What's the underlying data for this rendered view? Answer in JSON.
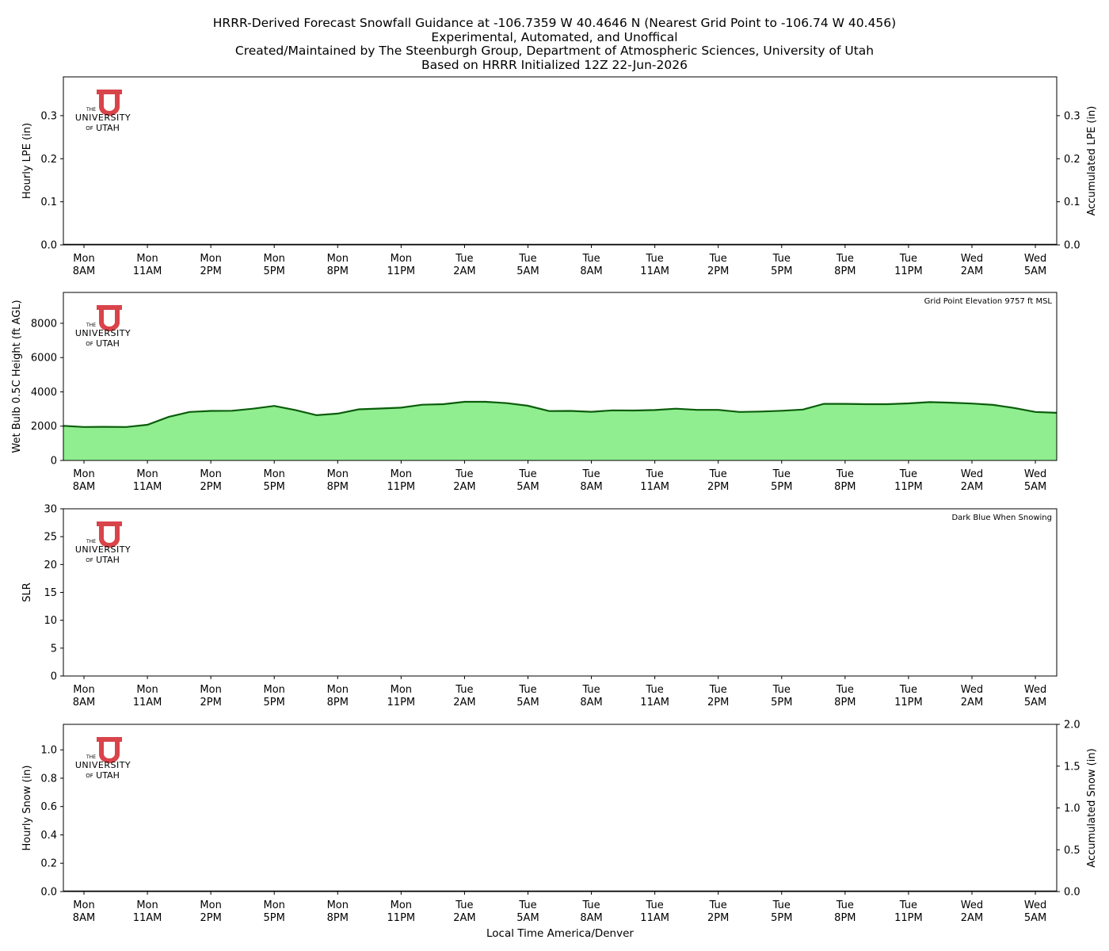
{
  "figure": {
    "title_lines": [
      "HRRR-Derived Forecast Snowfall Guidance at -106.7359 W 40.4646 N (Nearest Grid Point to -106.74 W 40.456)",
      "Experimental, Automated, and Unoffical",
      "Created/Maintained by The Steenburgh Group, Department of Atmospheric Sciences, University of Utah",
      "Based on HRRR Initialized 12Z 22-Jun-2026"
    ],
    "xlabel": "Local Time America/Denver"
  },
  "logo": {
    "the": "THE",
    "university": "UNIVERSITY",
    "of": "OF",
    "utah": "UTAH",
    "color": "#d9444a"
  },
  "colors": {
    "area_fill": "#90ee90",
    "area_line": "#0b5d0b",
    "zero_line": "#000000"
  },
  "chart_data": [
    {
      "type": "bar",
      "ylabel": "Hourly LPE (in)",
      "ylabel_right": "Accumulated LPE (in)",
      "ylim": [
        0,
        0.39
      ],
      "ylim_right": [
        0,
        0.39
      ],
      "yticks": [
        0,
        0.1,
        0.2,
        0.3
      ],
      "ytick_labels": [
        "0.0",
        "0.1",
        "0.2",
        "0.3"
      ],
      "yticks_right": [
        0,
        0.1,
        0.2,
        0.3
      ],
      "ytick_labels_right": [
        "0.0",
        "0.1",
        "0.2",
        "0.3"
      ],
      "x_ticks": [
        "Mon\n8AM",
        "Mon\n11AM",
        "Mon\n2PM",
        "Mon\n5PM",
        "Mon\n8PM",
        "Mon\n11PM",
        "Tue\n2AM",
        "Tue\n5AM",
        "Tue\n8AM",
        "Tue\n11AM",
        "Tue\n2PM",
        "Tue\n5PM",
        "Tue\n8PM",
        "Tue\n11PM",
        "Wed\n2AM",
        "Wed\n5AM"
      ],
      "series": [
        {
          "values": [
            0,
            0,
            0,
            0,
            0,
            0,
            0,
            0,
            0,
            0,
            0,
            0,
            0,
            0,
            0,
            0,
            0,
            0,
            0,
            0,
            0,
            0,
            0,
            0,
            0,
            0,
            0,
            0,
            0,
            0,
            0,
            0,
            0,
            0,
            0,
            0,
            0,
            0,
            0,
            0,
            0,
            0,
            0,
            0,
            0,
            0,
            0,
            0,
            0
          ]
        }
      ],
      "annotation": ""
    },
    {
      "type": "area",
      "ylabel": "Wet Bulb 0.5C Height (ft AGL)",
      "ylim": [
        0,
        9800
      ],
      "yticks": [
        0,
        2000,
        4000,
        6000,
        8000
      ],
      "ytick_labels": [
        "0",
        "2000",
        "4000",
        "6000",
        "8000"
      ],
      "x_ticks": [
        "Mon\n8AM",
        "Mon\n11AM",
        "Mon\n2PM",
        "Mon\n5PM",
        "Mon\n8PM",
        "Mon\n11PM",
        "Tue\n2AM",
        "Tue\n5AM",
        "Tue\n8AM",
        "Tue\n11AM",
        "Tue\n2PM",
        "Tue\n5PM",
        "Tue\n8PM",
        "Tue\n11PM",
        "Wed\n2AM",
        "Wed\n5AM"
      ],
      "series": [
        {
          "values": [
            2020,
            1950,
            1960,
            1950,
            2080,
            2540,
            2830,
            2890,
            2900,
            3020,
            3180,
            2940,
            2640,
            2730,
            2980,
            3030,
            3080,
            3250,
            3280,
            3420,
            3420,
            3340,
            3190,
            2880,
            2890,
            2840,
            2920,
            2910,
            2940,
            3020,
            2950,
            2950,
            2830,
            2850,
            2900,
            2970,
            3300,
            3300,
            3280,
            3280,
            3330,
            3400,
            3370,
            3320,
            3240,
            3060,
            2830,
            2780
          ]
        }
      ],
      "annotation": "Grid Point Elevation 9757 ft MSL"
    },
    {
      "type": "bar",
      "ylabel": "SLR",
      "ylim": [
        0,
        30
      ],
      "yticks": [
        0,
        5,
        10,
        15,
        20,
        25,
        30
      ],
      "ytick_labels": [
        "0",
        "5",
        "10",
        "15",
        "20",
        "25",
        "30"
      ],
      "x_ticks": [
        "Mon\n8AM",
        "Mon\n11AM",
        "Mon\n2PM",
        "Mon\n5PM",
        "Mon\n8PM",
        "Mon\n11PM",
        "Tue\n2AM",
        "Tue\n5AM",
        "Tue\n8AM",
        "Tue\n11AM",
        "Tue\n2PM",
        "Tue\n5PM",
        "Tue\n8PM",
        "Tue\n11PM",
        "Wed\n2AM",
        "Wed\n5AM"
      ],
      "series": [
        {
          "values": []
        }
      ],
      "annotation": "Dark Blue When Snowing"
    },
    {
      "type": "bar",
      "ylabel": "Hourly Snow (in)",
      "ylabel_right": "Accumulated Snow (in)",
      "ylim": [
        0,
        1.18
      ],
      "ylim_right": [
        0,
        2.0
      ],
      "yticks": [
        0,
        0.2,
        0.4,
        0.6,
        0.8,
        1.0
      ],
      "ytick_labels": [
        "0.0",
        "0.2",
        "0.4",
        "0.6",
        "0.8",
        "1.0"
      ],
      "yticks_right": [
        0,
        0.5,
        1.0,
        1.5,
        2.0
      ],
      "ytick_labels_right": [
        "0.0",
        "0.5",
        "1.0",
        "1.5",
        "2.0"
      ],
      "x_ticks": [
        "Mon\n8AM",
        "Mon\n11AM",
        "Mon\n2PM",
        "Mon\n5PM",
        "Mon\n8PM",
        "Mon\n11PM",
        "Tue\n2AM",
        "Tue\n5AM",
        "Tue\n8AM",
        "Tue\n11AM",
        "Tue\n2PM",
        "Tue\n5PM",
        "Tue\n8PM",
        "Tue\n11PM",
        "Wed\n2AM",
        "Wed\n5AM"
      ],
      "series": [
        {
          "values": [
            0,
            0,
            0,
            0,
            0,
            0,
            0,
            0,
            0,
            0,
            0,
            0,
            0,
            0,
            0,
            0,
            0,
            0,
            0,
            0,
            0,
            0,
            0,
            0,
            0,
            0,
            0,
            0,
            0,
            0,
            0,
            0,
            0,
            0,
            0,
            0,
            0,
            0,
            0,
            0,
            0,
            0,
            0,
            0,
            0,
            0,
            0,
            0,
            0
          ]
        }
      ],
      "annotation": ""
    }
  ]
}
